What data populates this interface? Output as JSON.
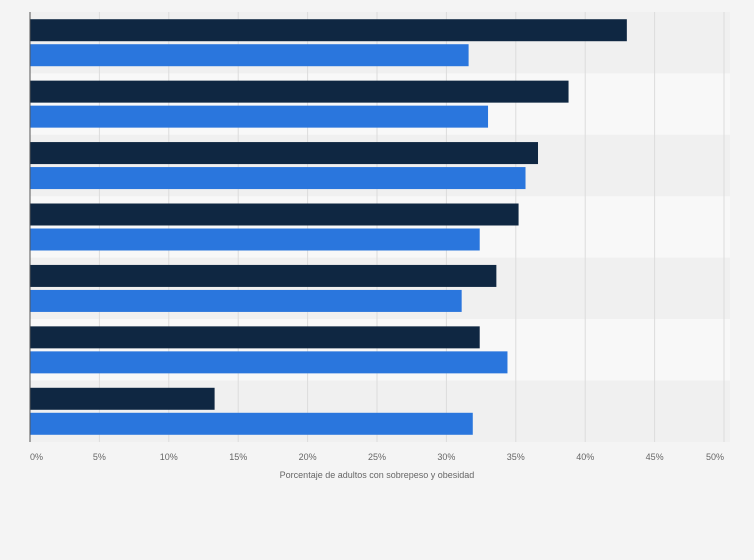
{
  "chart_data": {
    "type": "bar",
    "orientation": "horizontal",
    "title": "",
    "xlabel": "Porcentaje de adultos con sobrepeso y obesidad",
    "ylabel": "",
    "xlim": [
      0,
      50
    ],
    "x_ticks": [
      0,
      5,
      10,
      15,
      20,
      25,
      30,
      35,
      40,
      45,
      50
    ],
    "x_tick_labels": [
      "0%",
      "5%",
      "10%",
      "15%",
      "20%",
      "25%",
      "30%",
      "35%",
      "40%",
      "45%",
      "50%"
    ],
    "grid": true,
    "legend": "none",
    "categories": [
      "",
      "",
      "",
      "",
      "",
      "",
      ""
    ],
    "series": [
      {
        "color": "#0f2742",
        "values": [
          43.0,
          38.8,
          36.6,
          35.2,
          33.6,
          32.4,
          13.3
        ]
      },
      {
        "color": "#2a76dd",
        "values": [
          31.6,
          33.0,
          35.7,
          32.4,
          31.1,
          34.4,
          31.9
        ]
      }
    ]
  }
}
